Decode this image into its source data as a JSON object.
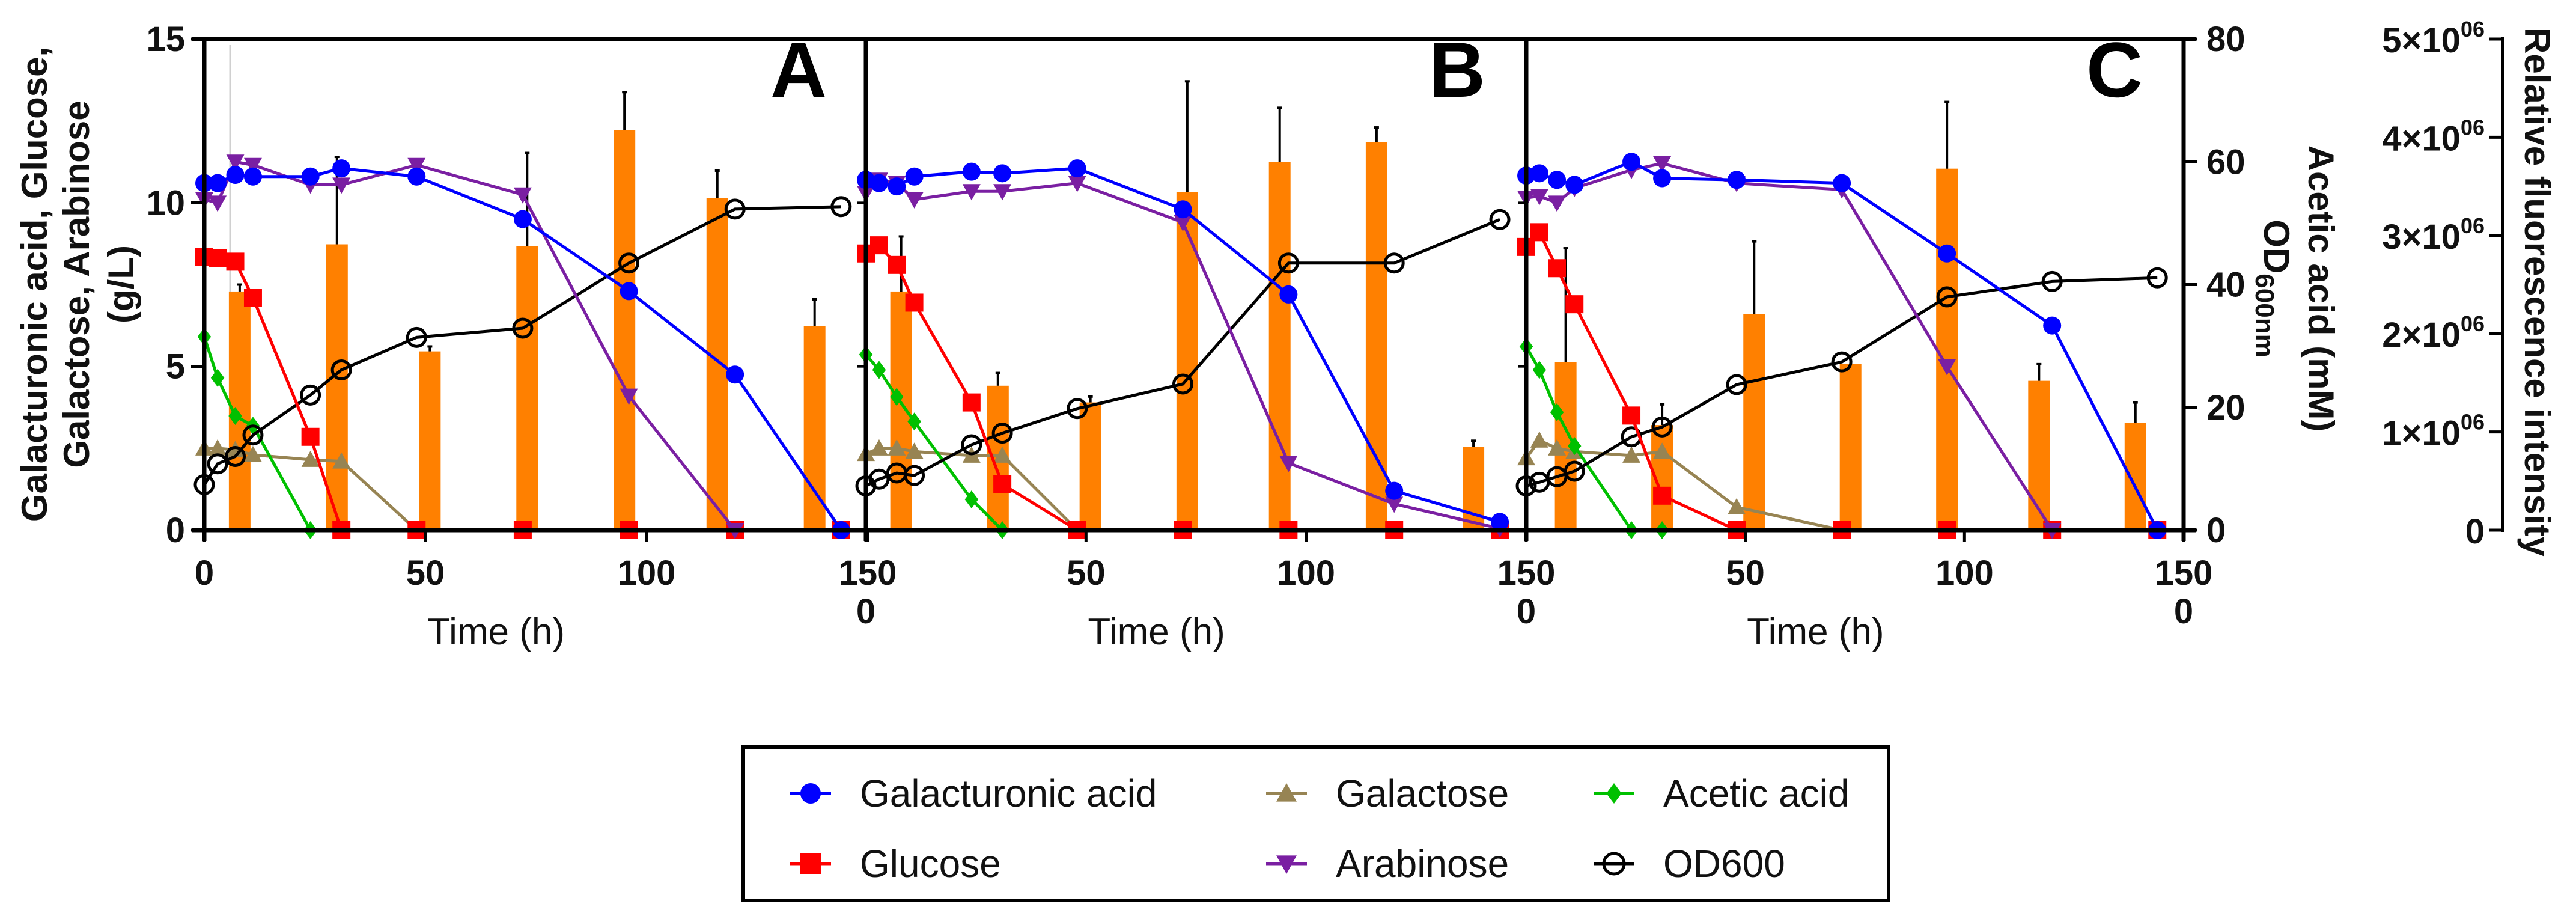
{
  "chart_data": {
    "type": "line",
    "title": "",
    "xlim": [
      0,
      150
    ],
    "x_ticks": [
      0,
      50,
      100,
      150
    ],
    "x_tick_labels": [
      "0",
      "50",
      "100",
      "150"
    ],
    "left_axis": {
      "label_lines": [
        "Galacturonic acid, Glucose,",
        "Galactose, Arabinose",
        "(g/L)"
      ],
      "ylim": [
        0,
        15
      ],
      "ticks": [
        0,
        5,
        10,
        15
      ],
      "tick_labels": [
        "0",
        "5",
        "10",
        "15"
      ]
    },
    "right_axis": {
      "label": "Acetic acid (mM)",
      "label2_main": "OD",
      "label2_sub": "600nm",
      "ylim": [
        0,
        80
      ],
      "ticks": [
        0,
        20,
        40,
        60,
        80
      ],
      "tick_labels": [
        "0",
        "20",
        "40",
        "60",
        "80"
      ]
    },
    "fluorescence_axis": {
      "label": "Relative fluorescence intensity",
      "ylim": [
        0,
        5000000
      ],
      "ticks": [
        0,
        1000000,
        2000000,
        3000000,
        4000000,
        5000000
      ],
      "tick_labels": [
        {
          "base": "0",
          "exp": ""
        },
        {
          "base": "1×10",
          "exp": "06"
        },
        {
          "base": "2×10",
          "exp": "06"
        },
        {
          "base": "3×10",
          "exp": "06"
        },
        {
          "base": "4×10",
          "exp": "06"
        },
        {
          "base": "5×10",
          "exp": "06"
        }
      ]
    },
    "colors": {
      "galacturonic": "#0000ff",
      "glucose": "#ff0000",
      "galactose": "#978453",
      "arabinose": "#7a1fa2",
      "acetic": "#00c000",
      "od600": "#000000",
      "fluorescence": "#ff8000"
    },
    "legend": [
      {
        "key": "galacturonic",
        "label": "Galacturonic acid"
      },
      {
        "key": "glucose",
        "label": "Glucose"
      },
      {
        "key": "galactose",
        "label": "Galactose"
      },
      {
        "key": "arabinose",
        "label": "Arabinose"
      },
      {
        "key": "acetic",
        "label": "Acetic acid"
      },
      {
        "key": "od600",
        "label": "OD600"
      }
    ],
    "times": [
      0,
      3,
      7,
      11,
      24,
      31,
      48,
      72,
      96,
      120,
      144
    ],
    "panels": [
      {
        "label": "A",
        "xlabel": "Time (h)",
        "series": {
          "galacturonic": [
            10.6,
            10.6,
            10.85,
            10.8,
            10.8,
            11.05,
            10.8,
            9.5,
            7.3,
            4.75,
            0
          ],
          "glucose": [
            8.35,
            8.3,
            8.2,
            7.1,
            2.85,
            0,
            0,
            0,
            0,
            0,
            0
          ],
          "galactose": [
            2.5,
            2.5,
            2.45,
            2.3,
            2.15,
            2.1,
            0,
            null,
            null,
            null,
            null
          ],
          "arabinose": [
            10.1,
            10.0,
            11.25,
            11.15,
            10.55,
            10.55,
            11.15,
            10.25,
            4.1,
            0,
            null
          ],
          "acetic": [
            31.5,
            24.8,
            18.6,
            17.0,
            0,
            0,
            null,
            null,
            null,
            null,
            null
          ],
          "od600": [
            7.4,
            10.8,
            12.0,
            15.5,
            22.0,
            26.1,
            31.4,
            32.9,
            43.5,
            52.3,
            52.7
          ]
        },
        "fluorescence": {
          "times": [
            8,
            30,
            51,
            73,
            95,
            116,
            138
          ],
          "values": [
            2430000,
            2910000,
            1820000,
            2890000,
            4070000,
            3380000,
            2080000
          ],
          "errors": [
            70000,
            890000,
            50000,
            950000,
            390000,
            280000,
            270000
          ]
        }
      },
      {
        "label": "B",
        "xlabel": "Time (h)",
        "series": {
          "galacturonic": [
            10.7,
            10.6,
            10.5,
            10.8,
            10.95,
            10.9,
            11.05,
            9.8,
            7.2,
            1.2,
            0.25
          ],
          "glucose": [
            8.45,
            8.7,
            8.1,
            6.95,
            3.9,
            1.4,
            0,
            0,
            0,
            0,
            0
          ],
          "galactose": [
            2.33,
            2.5,
            2.5,
            2.4,
            2.28,
            2.28,
            0,
            null,
            null,
            null,
            null
          ],
          "arabinose": [
            10.3,
            10.7,
            10.6,
            10.1,
            10.35,
            10.35,
            10.6,
            9.4,
            2.05,
            0.8,
            0.05
          ],
          "acetic": [
            28.6,
            26.1,
            21.7,
            17.7,
            5.0,
            0,
            0,
            null,
            null,
            null,
            null
          ],
          "od600": [
            7.2,
            8.3,
            9.3,
            8.9,
            13.9,
            15.8,
            19.8,
            23.8,
            43.5,
            43.5,
            50.6
          ]
        },
        "fluorescence": {
          "times": [
            8,
            30,
            51,
            73,
            94,
            116,
            138
          ],
          "values": [
            2430000,
            1470000,
            1300000,
            3440000,
            3750000,
            3950000,
            850000
          ],
          "errors": [
            560000,
            130000,
            60000,
            1130000,
            550000,
            150000,
            60000
          ]
        }
      },
      {
        "label": "C",
        "xlabel": "Time (h)",
        "series": {
          "galacturonic": [
            10.83,
            10.9,
            10.7,
            10.55,
            11.25,
            10.75,
            10.7,
            10.6,
            8.45,
            6.25,
            0
          ],
          "glucose": [
            8.65,
            9.1,
            8.0,
            6.9,
            3.5,
            1.05,
            0,
            0,
            0,
            0,
            0
          ],
          "galactose": [
            2.2,
            2.74,
            2.5,
            2.4,
            2.28,
            2.4,
            0.7,
            0,
            null,
            null,
            null
          ],
          "arabinose": [
            10.15,
            10.2,
            10.0,
            10.45,
            11.0,
            11.2,
            10.6,
            10.4,
            5.0,
            0,
            null
          ],
          "acetic": [
            29.9,
            26.1,
            19.2,
            13.7,
            0,
            0,
            0,
            null,
            null,
            null,
            null
          ],
          "od600": [
            7.2,
            7.8,
            8.7,
            9.6,
            15.2,
            16.8,
            23.7,
            27.4,
            38.0,
            40.5,
            41.1
          ]
        },
        "fluorescence": {
          "times": [
            9,
            31,
            52,
            74,
            96,
            117,
            139
          ],
          "values": [
            1710000,
            1070000,
            2200000,
            1690000,
            3680000,
            1520000,
            1090000
          ],
          "errors": [
            1160000,
            210000,
            740000,
            0,
            680000,
            170000,
            210000
          ]
        }
      }
    ]
  }
}
